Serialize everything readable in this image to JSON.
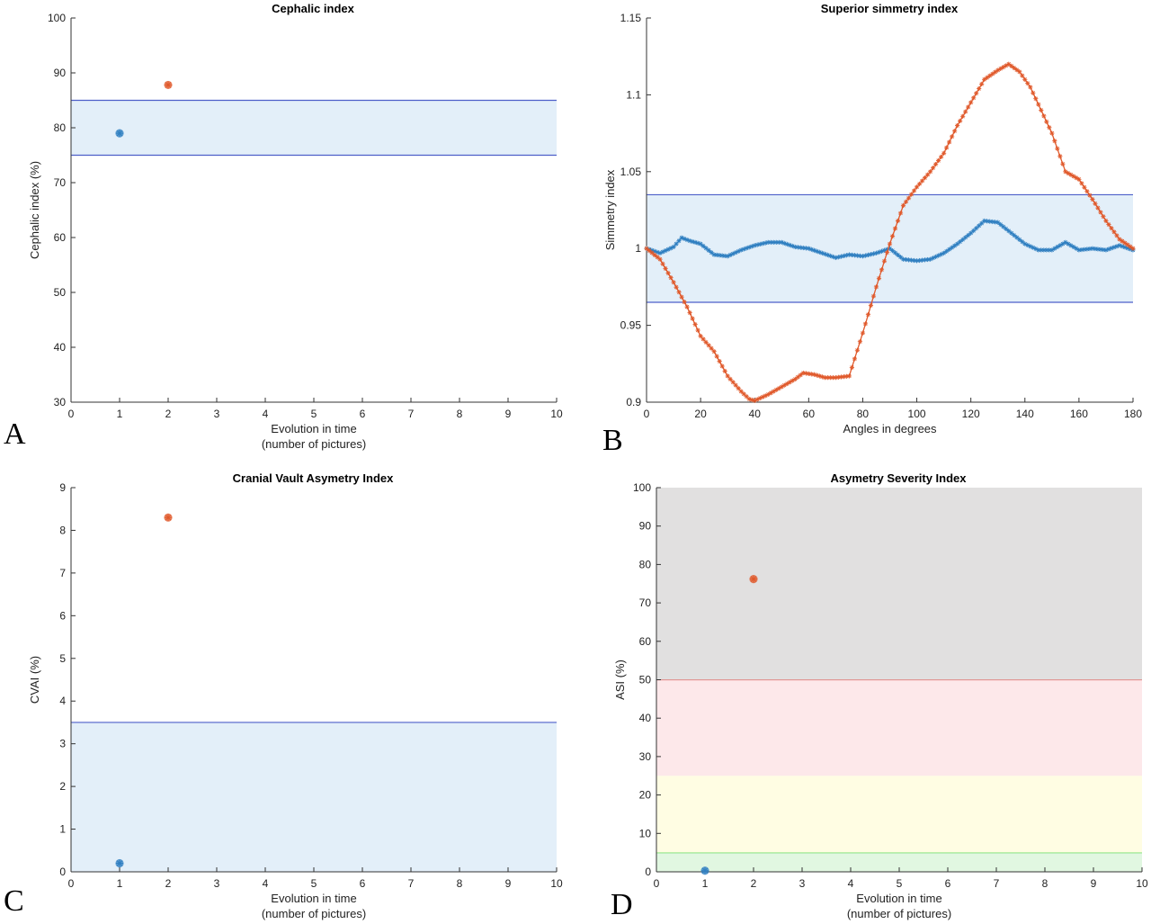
{
  "panel_letters": [
    "A",
    "B",
    "C",
    "D"
  ],
  "colors": {
    "series_blue": "#2f7fc1",
    "series_orange": "#e0592b",
    "band_blue": "#e3eff9",
    "band_line": "#4d5fc9",
    "asi_grey": "#e1e0e0",
    "asi_pink": "#fde8ea",
    "asi_yellow": "#fffde3",
    "asi_green": "#e1f7e1",
    "asi_red_line": "#e0504a",
    "asi_green_line": "#3dd43d",
    "axis": "#333333"
  },
  "chart_data": [
    {
      "id": "A",
      "type": "scatter",
      "title": "Cephalic index",
      "xlabel": [
        "Evolution in time",
        "(number of pictures)"
      ],
      "ylabel": "Cephalic index (%)",
      "xlim": [
        0,
        10
      ],
      "ylim": [
        30,
        100
      ],
      "xticks": [
        "0",
        "1",
        "2",
        "3",
        "4",
        "5",
        "6",
        "7",
        "8",
        "9",
        "10"
      ],
      "yticks": [
        "30",
        "40",
        "50",
        "60",
        "70",
        "80",
        "90",
        "100"
      ],
      "bands": [
        {
          "from": 75,
          "to": 85,
          "fill": "band_blue",
          "lines": [
            "band_line",
            "band_line"
          ]
        }
      ],
      "points": [
        {
          "x": 1,
          "y": 79,
          "color": "series_blue"
        },
        {
          "x": 2,
          "y": 87.8,
          "color": "series_orange"
        }
      ]
    },
    {
      "id": "B",
      "type": "line",
      "title": "Superior simmetry index",
      "xlabel": [
        "Angles in degrees"
      ],
      "ylabel": "Simmetry index",
      "xlim": [
        0,
        180
      ],
      "ylim": [
        0.9,
        1.15
      ],
      "xticks": [
        "0",
        "20",
        "40",
        "60",
        "80",
        "100",
        "120",
        "140",
        "160",
        "180"
      ],
      "yticks": [
        "0.9",
        "0.95",
        "1",
        "1.05",
        "1.1",
        "1.15"
      ],
      "bands": [
        {
          "from": 0.965,
          "to": 1.035,
          "fill": "band_blue",
          "lines": [
            "band_line",
            "band_line"
          ]
        }
      ],
      "series": [
        {
          "color": "series_blue",
          "x": [
            0,
            5,
            10,
            13,
            16,
            20,
            25,
            30,
            35,
            40,
            45,
            50,
            55,
            60,
            65,
            70,
            75,
            80,
            85,
            90,
            95,
            100,
            105,
            110,
            115,
            120,
            125,
            130,
            135,
            140,
            145,
            150,
            155,
            160,
            165,
            170,
            175,
            180
          ],
          "y": [
            1.0,
            0.997,
            1.001,
            1.007,
            1.005,
            1.003,
            0.996,
            0.995,
            0.999,
            1.002,
            1.004,
            1.004,
            1.001,
            1.0,
            0.997,
            0.994,
            0.996,
            0.995,
            0.997,
            1.0,
            0.993,
            0.992,
            0.993,
            0.997,
            1.003,
            1.01,
            1.018,
            1.017,
            1.01,
            1.003,
            0.999,
            0.999,
            1.004,
            0.999,
            1.0,
            0.999,
            1.002,
            0.999
          ]
        },
        {
          "color": "series_orange",
          "x": [
            0,
            5,
            10,
            15,
            20,
            25,
            30,
            35,
            38,
            40,
            45,
            50,
            55,
            58,
            62,
            66,
            70,
            75,
            80,
            85,
            90,
            95,
            100,
            105,
            110,
            115,
            120,
            125,
            130,
            134,
            138,
            142,
            146,
            150,
            155,
            160,
            165,
            170,
            175,
            180
          ],
          "y": [
            1.0,
            0.993,
            0.978,
            0.962,
            0.943,
            0.933,
            0.917,
            0.907,
            0.902,
            0.901,
            0.905,
            0.91,
            0.915,
            0.919,
            0.918,
            0.916,
            0.916,
            0.917,
            0.945,
            0.975,
            1.003,
            1.028,
            1.04,
            1.05,
            1.062,
            1.08,
            1.095,
            1.11,
            1.116,
            1.12,
            1.115,
            1.105,
            1.09,
            1.075,
            1.05,
            1.045,
            1.032,
            1.018,
            1.006,
            1.0
          ]
        }
      ]
    },
    {
      "id": "C",
      "type": "scatter",
      "title": "Cranial Vault Asymetry Index",
      "xlabel": [
        "Evolution in time",
        "(number of pictures)"
      ],
      "ylabel": "CVAI (%)",
      "xlim": [
        0,
        10
      ],
      "ylim": [
        0,
        9
      ],
      "xticks": [
        "0",
        "1",
        "2",
        "3",
        "4",
        "5",
        "6",
        "7",
        "8",
        "9",
        "10"
      ],
      "yticks": [
        "0",
        "1",
        "2",
        "3",
        "4",
        "5",
        "6",
        "7",
        "8",
        "9"
      ],
      "bands": [
        {
          "from": 0,
          "to": 3.5,
          "fill": "band_blue",
          "lines": [
            null,
            "band_line"
          ]
        }
      ],
      "points": [
        {
          "x": 1,
          "y": 0.2,
          "color": "series_blue"
        },
        {
          "x": 2,
          "y": 8.3,
          "color": "series_orange"
        }
      ]
    },
    {
      "id": "D",
      "type": "scatter",
      "title": "Asymetry Severity Index",
      "xlabel": [
        "Evolution in time",
        "(number of pictures)"
      ],
      "ylabel": "ASI (%)",
      "xlim": [
        0,
        10
      ],
      "ylim": [
        0,
        100
      ],
      "xticks": [
        "0",
        "1",
        "2",
        "3",
        "4",
        "5",
        "6",
        "7",
        "8",
        "9",
        "10"
      ],
      "yticks": [
        "0",
        "10",
        "20",
        "30",
        "40",
        "50",
        "60",
        "70",
        "80",
        "90",
        "100"
      ],
      "bands": [
        {
          "from": 0,
          "to": 5,
          "fill": "asi_green",
          "lines": [
            null,
            "asi_green_line"
          ]
        },
        {
          "from": 5,
          "to": 25,
          "fill": "asi_yellow",
          "lines": [
            null,
            null
          ]
        },
        {
          "from": 25,
          "to": 50,
          "fill": "asi_pink",
          "lines": [
            null,
            "asi_red_line"
          ]
        },
        {
          "from": 50,
          "to": 100,
          "fill": "asi_grey",
          "lines": [
            null,
            null
          ]
        }
      ],
      "points": [
        {
          "x": 1,
          "y": 0.3,
          "color": "series_blue"
        },
        {
          "x": 2,
          "y": 76.2,
          "color": "series_orange"
        }
      ]
    }
  ]
}
